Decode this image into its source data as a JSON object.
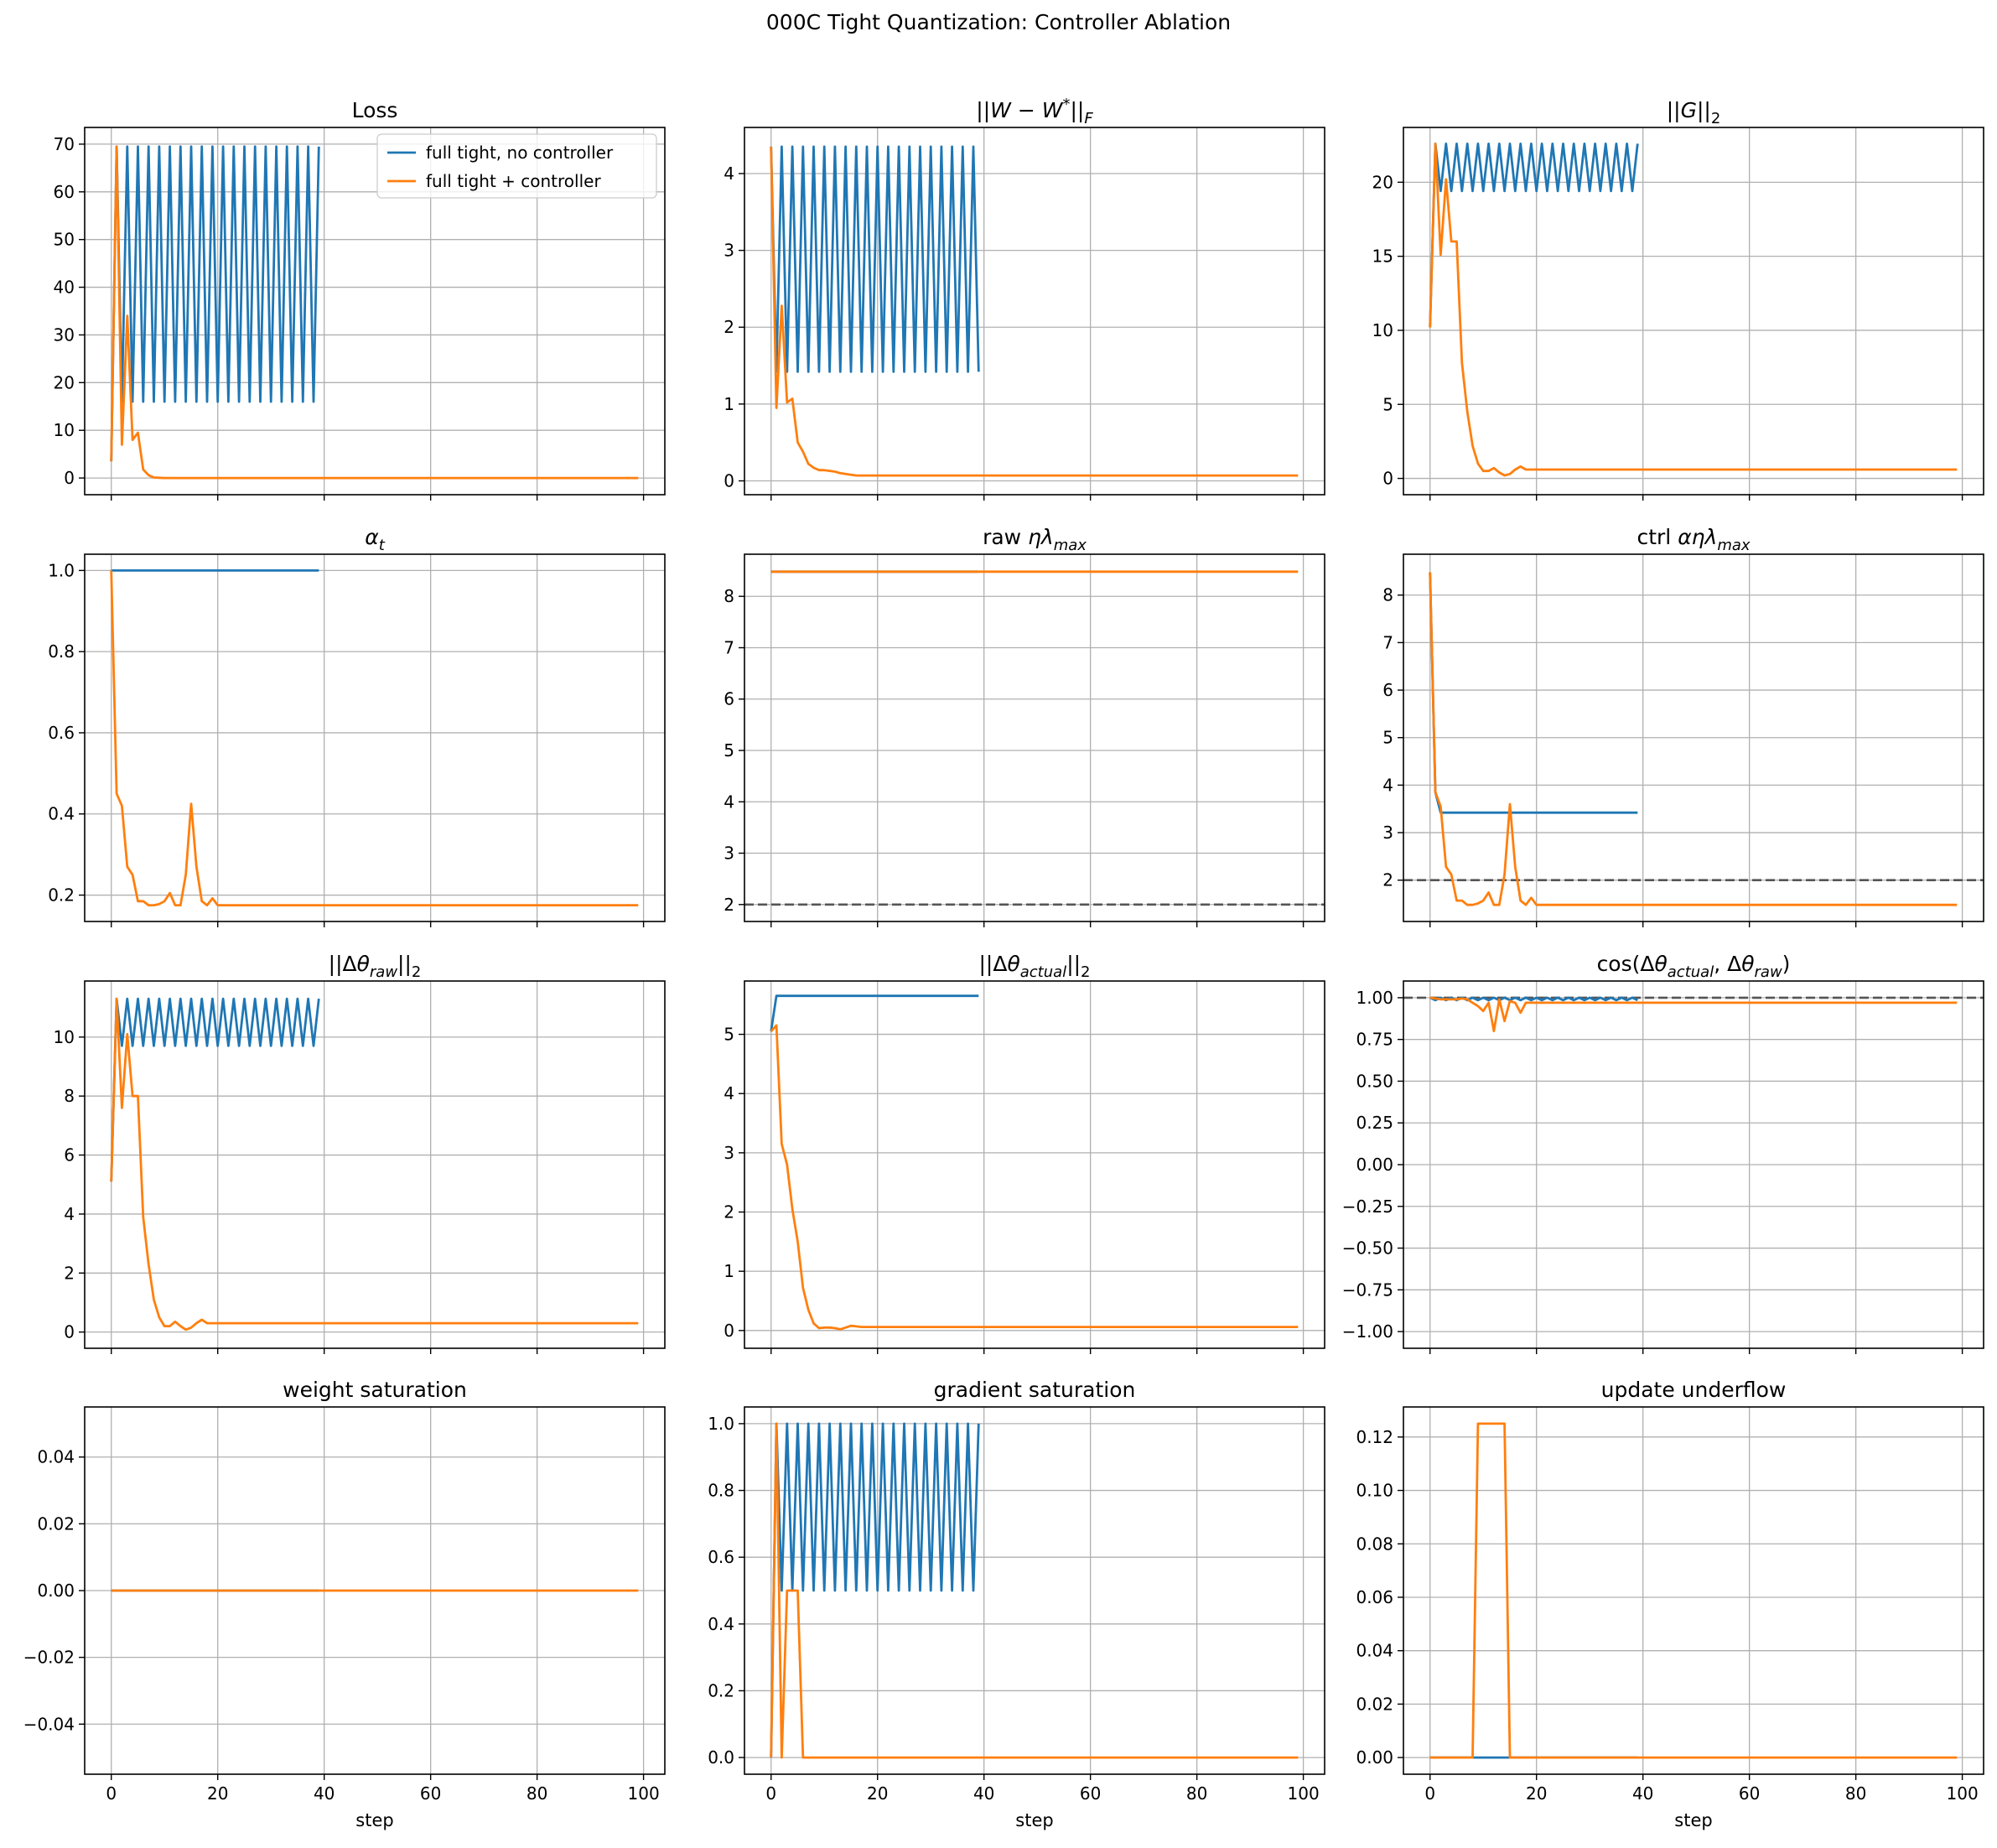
{
  "suptitle": "000C Tight Quantization: Controller Ablation",
  "colors": {
    "no_controller": "#1f77b4",
    "controller": "#ff7f0e",
    "grid": "#b0b0b0",
    "refline": "#555555"
  },
  "legend": {
    "location": "upper right",
    "panel": 0,
    "entries": [
      "full tight, no controller",
      "full tight + controller"
    ]
  },
  "chart_data": [
    {
      "type": "line",
      "title": "Loss",
      "xlabel": "",
      "xlim": [
        -5,
        104
      ],
      "ylim": [
        -3.5,
        73.5
      ],
      "xticks": [
        0,
        20,
        40,
        60,
        80,
        100
      ],
      "yticks": [
        0,
        10,
        20,
        30,
        40,
        50,
        60,
        70
      ],
      "ytick_labels": [
        "0",
        "10",
        "20",
        "30",
        "40",
        "50",
        "60",
        "70"
      ],
      "series": [
        {
          "name": "full tight, no controller",
          "x_start": 0,
          "values": [
            3.5,
            69.5,
            16,
            69.5,
            16,
            69.5,
            16,
            69.5,
            16,
            69.5,
            16,
            69.5,
            16,
            69.5,
            16,
            69.5,
            16,
            69.5,
            16,
            69.5,
            16,
            69.5,
            16,
            69.5,
            16,
            69.5,
            16,
            69.5,
            16,
            69.5,
            16,
            69.5,
            16,
            69.5,
            16,
            69.5,
            16,
            69.5,
            16,
            69.5
          ]
        },
        {
          "name": "full tight + controller",
          "x_start": 0,
          "values": [
            3.5,
            69.5,
            7,
            34,
            8,
            9.5,
            1.8,
            0.6,
            0.1,
            0.05
          ],
          "fill_to": 99,
          "fill_value": 0
        }
      ]
    },
    {
      "type": "line",
      "title": "||W − W*||_F",
      "xlabel": "",
      "xlim": [
        -5,
        104
      ],
      "ylim": [
        -0.18,
        4.6
      ],
      "xticks": [
        0,
        20,
        40,
        60,
        80,
        100
      ],
      "yticks": [
        0,
        1,
        2,
        3,
        4
      ],
      "ytick_labels": [
        "0",
        "1",
        "2",
        "3",
        "4"
      ],
      "series": [
        {
          "name": "full tight, no controller",
          "x_start": 0,
          "values": [
            4.35,
            1.42,
            4.35,
            1.42,
            4.35,
            1.42,
            4.35,
            1.42,
            4.35,
            1.42,
            4.35,
            1.42,
            4.35,
            1.42,
            4.35,
            1.42,
            4.35,
            1.42,
            4.35,
            1.42,
            4.35,
            1.42,
            4.35,
            1.42,
            4.35,
            1.42,
            4.35,
            1.42,
            4.35,
            1.42,
            4.35,
            1.42,
            4.35,
            1.42,
            4.35,
            1.42,
            4.35,
            1.42,
            4.35,
            1.42
          ]
        },
        {
          "name": "full tight + controller",
          "x_start": 0,
          "values": [
            4.35,
            0.95,
            2.28,
            1.02,
            1.07,
            0.5,
            0.38,
            0.22,
            0.17,
            0.14,
            0.14,
            0.13,
            0.12,
            0.1,
            0.09,
            0.08
          ],
          "fill_to": 99,
          "fill_value": 0.07
        }
      ]
    },
    {
      "type": "line",
      "title": "||G||_2",
      "xlabel": "",
      "xlim": [
        -5,
        104
      ],
      "ylim": [
        -1.1,
        23.7
      ],
      "xticks": [
        0,
        20,
        40,
        60,
        80,
        100
      ],
      "yticks": [
        0,
        5,
        10,
        15,
        20
      ],
      "ytick_labels": [
        "0",
        "5",
        "10",
        "15",
        "20"
      ],
      "series": [
        {
          "name": "full tight, no controller",
          "x_start": 0,
          "values": [
            10.2,
            22.6,
            19.4,
            22.6,
            19.4,
            22.6,
            19.4,
            22.6,
            19.4,
            22.6,
            19.4,
            22.6,
            19.4,
            22.6,
            19.4,
            22.6,
            19.4,
            22.6,
            19.4,
            22.6,
            19.4,
            22.6,
            19.4,
            22.6,
            19.4,
            22.6,
            19.4,
            22.6,
            19.4,
            22.6,
            19.4,
            22.6,
            19.4,
            22.6,
            19.4,
            22.6,
            19.4,
            22.6,
            19.4,
            22.6
          ]
        },
        {
          "name": "full tight + controller",
          "x_start": 0,
          "values": [
            10.2,
            22.6,
            15.1,
            20.2,
            16,
            16,
            7.8,
            4.5,
            2.2,
            1,
            0.5,
            0.5,
            0.7,
            0.4,
            0.2,
            0.3,
            0.6,
            0.8,
            0.6
          ],
          "fill_to": 99,
          "fill_value": 0.6
        }
      ]
    },
    {
      "type": "line",
      "title": "α_t",
      "xlabel": "",
      "xlim": [
        -5,
        104
      ],
      "ylim": [
        0.135,
        1.04
      ],
      "xticks": [
        0,
        20,
        40,
        60,
        80,
        100
      ],
      "yticks": [
        0.2,
        0.4,
        0.6,
        0.8,
        1.0
      ],
      "ytick_labels": [
        "0.2",
        "0.4",
        "0.6",
        "0.8",
        "1.0"
      ],
      "series": [
        {
          "name": "full tight, no controller",
          "x_start": 0,
          "values": [
            1,
            1
          ],
          "fill_to": 39,
          "fill_value": 1
        },
        {
          "name": "full tight + controller",
          "x_start": 0,
          "values": [
            1,
            0.45,
            0.42,
            0.27,
            0.25,
            0.185,
            0.185,
            0.175,
            0.175,
            0.178,
            0.185,
            0.205,
            0.175,
            0.175,
            0.25,
            0.425,
            0.27,
            0.185,
            0.175,
            0.192,
            0.175
          ],
          "fill_to": 99,
          "fill_value": 0.175
        }
      ]
    },
    {
      "type": "line",
      "title": "raw ηλ_max",
      "xlabel": "",
      "xlim": [
        -5,
        104
      ],
      "ylim": [
        1.67,
        8.82
      ],
      "xticks": [
        0,
        20,
        40,
        60,
        80,
        100
      ],
      "yticks": [
        2,
        3,
        4,
        5,
        6,
        7,
        8
      ],
      "ytick_labels": [
        "2",
        "3",
        "4",
        "5",
        "6",
        "7",
        "8"
      ],
      "hline": 2,
      "series": [
        {
          "name": "full tight, no controller",
          "x_start": 0,
          "values": [
            8.48,
            8.48
          ],
          "fill_to": 39,
          "fill_value": 8.48
        },
        {
          "name": "full tight + controller",
          "x_start": 0,
          "values": [
            8.48,
            8.48
          ],
          "fill_to": 99,
          "fill_value": 8.48
        }
      ]
    },
    {
      "type": "line",
      "title": "ctrl αηλ_max",
      "xlabel": "",
      "xlim": [
        -5,
        104
      ],
      "ylim": [
        1.13,
        8.86
      ],
      "xticks": [
        0,
        20,
        40,
        60,
        80,
        100
      ],
      "yticks": [
        2,
        3,
        4,
        5,
        6,
        7,
        8
      ],
      "ytick_labels": [
        "2",
        "3",
        "4",
        "5",
        "6",
        "7",
        "8"
      ],
      "hline": 2,
      "series": [
        {
          "name": "full tight, no controller",
          "x_start": 0,
          "values": [
            8.48,
            3.85,
            3.42
          ],
          "fill_to": 39,
          "fill_value": 3.42
        },
        {
          "name": "full tight + controller",
          "x_start": 0,
          "values": [
            8.48,
            3.85,
            3.55,
            2.28,
            2.12,
            1.57,
            1.57,
            1.48,
            1.48,
            1.51,
            1.57,
            1.74,
            1.48,
            1.48,
            2.12,
            3.6,
            2.28,
            1.57,
            1.48,
            1.63,
            1.48
          ],
          "fill_to": 99,
          "fill_value": 1.48
        }
      ]
    },
    {
      "type": "line",
      "title": "||Δθ_raw||_2",
      "xlabel": "",
      "xlim": [
        -5,
        104
      ],
      "ylim": [
        -0.55,
        11.9
      ],
      "xticks": [
        0,
        20,
        40,
        60,
        80,
        100
      ],
      "yticks": [
        0,
        2,
        4,
        6,
        8,
        10
      ],
      "ytick_labels": [
        "0",
        "2",
        "4",
        "6",
        "8",
        "10"
      ],
      "series": [
        {
          "name": "full tight, no controller",
          "x_start": 0,
          "values": [
            5.1,
            11.3,
            9.7,
            11.3,
            9.7,
            11.3,
            9.7,
            11.3,
            9.7,
            11.3,
            9.7,
            11.3,
            9.7,
            11.3,
            9.7,
            11.3,
            9.7,
            11.3,
            9.7,
            11.3,
            9.7,
            11.3,
            9.7,
            11.3,
            9.7,
            11.3,
            9.7,
            11.3,
            9.7,
            11.3,
            9.7,
            11.3,
            9.7,
            11.3,
            9.7,
            11.3,
            9.7,
            11.3,
            9.7,
            11.3
          ]
        },
        {
          "name": "full tight + controller",
          "x_start": 0,
          "values": [
            5.1,
            11.3,
            7.6,
            10.1,
            8,
            8,
            3.9,
            2.3,
            1.1,
            0.5,
            0.2,
            0.2,
            0.35,
            0.2,
            0.08,
            0.15,
            0.3,
            0.42,
            0.3
          ],
          "fill_to": 99,
          "fill_value": 0.3
        }
      ]
    },
    {
      "type": "line",
      "title": "||Δθ_actual||_2",
      "xlabel": "",
      "xlim": [
        -5,
        104
      ],
      "ylim": [
        -0.3,
        5.9
      ],
      "xticks": [
        0,
        20,
        40,
        60,
        80,
        100
      ],
      "yticks": [
        0,
        1,
        2,
        3,
        4,
        5
      ],
      "ytick_labels": [
        "0",
        "1",
        "2",
        "3",
        "4",
        "5"
      ],
      "series": [
        {
          "name": "full tight, no controller",
          "x_start": 0,
          "values": [
            5.05,
            5.65
          ],
          "fill_to": 39,
          "fill_value": 5.65
        },
        {
          "name": "full tight + controller",
          "x_start": 0,
          "values": [
            5.05,
            5.15,
            3.15,
            2.8,
            2.05,
            1.5,
            0.72,
            0.35,
            0.12,
            0.04,
            0.05,
            0.05,
            0.04,
            0.02,
            0.05,
            0.08,
            0.07,
            0.06
          ],
          "fill_to": 99,
          "fill_value": 0.06
        }
      ]
    },
    {
      "type": "line",
      "title": "cos(Δθ_actual, Δθ_raw)",
      "xlabel": "",
      "xlim": [
        -5,
        104
      ],
      "ylim": [
        -1.1,
        1.1
      ],
      "xticks": [
        0,
        20,
        40,
        60,
        80,
        100
      ],
      "yticks": [
        -1,
        -0.75,
        -0.5,
        -0.25,
        0,
        0.25,
        0.5,
        0.75,
        1
      ],
      "ytick_labels": [
        "−1.00",
        "−0.75",
        "−0.50",
        "−0.25",
        "0.00",
        "0.25",
        "0.50",
        "0.75",
        "1.00"
      ],
      "hline": 1,
      "series": [
        {
          "name": "full tight, no controller",
          "x_start": 0,
          "values": [
            1,
            0.985,
            1,
            0.985,
            1,
            0.985,
            1,
            0.985,
            1,
            0.985,
            1,
            0.985,
            1,
            0.985,
            1,
            0.985,
            1,
            0.985,
            1,
            0.985,
            1,
            0.985,
            1,
            0.985,
            1,
            0.985,
            1,
            0.985,
            1,
            0.985,
            1,
            0.985,
            1,
            0.985,
            1,
            0.985,
            1,
            0.985,
            1,
            0.985
          ]
        },
        {
          "name": "full tight + controller",
          "x_start": 0,
          "values": [
            1,
            0.995,
            0.99,
            0.99,
            0.99,
            0.99,
            0.995,
            0.99,
            0.97,
            0.95,
            0.92,
            0.97,
            0.8,
            0.99,
            0.86,
            0.98,
            0.97,
            0.91,
            0.97,
            0.97
          ],
          "fill_to": 99,
          "fill_value": 0.97
        }
      ]
    },
    {
      "type": "line",
      "title": "weight saturation",
      "xlabel": "step",
      "xlim": [
        -5,
        104
      ],
      "ylim": [
        -0.055,
        0.055
      ],
      "xticks": [
        0,
        20,
        40,
        60,
        80,
        100
      ],
      "yticks": [
        -0.04,
        -0.02,
        0,
        0.02,
        0.04
      ],
      "ytick_labels": [
        "−0.04",
        "−0.02",
        "0.00",
        "0.02",
        "0.04"
      ],
      "xtick_labels": [
        "0",
        "20",
        "40",
        "60",
        "80",
        "100"
      ],
      "series": [
        {
          "name": "full tight, no controller",
          "x_start": 0,
          "values": [
            0,
            0
          ],
          "fill_to": 39,
          "fill_value": 0
        },
        {
          "name": "full tight + controller",
          "x_start": 0,
          "values": [
            0,
            0
          ],
          "fill_to": 99,
          "fill_value": 0
        }
      ]
    },
    {
      "type": "line",
      "title": "gradient saturation",
      "xlabel": "step",
      "xlim": [
        -5,
        104
      ],
      "ylim": [
        -0.05,
        1.05
      ],
      "xticks": [
        0,
        20,
        40,
        60,
        80,
        100
      ],
      "yticks": [
        0,
        0.2,
        0.4,
        0.6,
        0.8,
        1.0
      ],
      "ytick_labels": [
        "0.0",
        "0.2",
        "0.4",
        "0.6",
        "0.8",
        "1.0"
      ],
      "xtick_labels": [
        "0",
        "20",
        "40",
        "60",
        "80",
        "100"
      ],
      "series": [
        {
          "name": "full tight, no controller",
          "x_start": 0,
          "values": [
            0,
            1,
            0.5,
            1,
            0.5,
            1,
            0.5,
            1,
            0.5,
            1,
            0.5,
            1,
            0.5,
            1,
            0.5,
            1,
            0.5,
            1,
            0.5,
            1,
            0.5,
            1,
            0.5,
            1,
            0.5,
            1,
            0.5,
            1,
            0.5,
            1,
            0.5,
            1,
            0.5,
            1,
            0.5,
            1,
            0.5,
            1,
            0.5,
            1
          ]
        },
        {
          "name": "full tight + controller",
          "x_start": 0,
          "values": [
            0,
            1,
            0,
            0.5,
            0.5,
            0.5,
            0,
            0
          ],
          "fill_to": 99,
          "fill_value": 0
        }
      ]
    },
    {
      "type": "line",
      "title": "update underflow",
      "xlabel": "step",
      "xlim": [
        -5,
        104
      ],
      "ylim": [
        -0.00625,
        0.13125
      ],
      "xticks": [
        0,
        20,
        40,
        60,
        80,
        100
      ],
      "yticks": [
        0,
        0.02,
        0.04,
        0.06,
        0.08,
        0.1,
        0.12
      ],
      "ytick_labels": [
        "0.00",
        "0.02",
        "0.04",
        "0.06",
        "0.08",
        "0.10",
        "0.12"
      ],
      "xtick_labels": [
        "0",
        "20",
        "40",
        "60",
        "80",
        "100"
      ],
      "series": [
        {
          "name": "full tight, no controller",
          "x_start": 0,
          "values": [
            0,
            0
          ],
          "fill_to": 39,
          "fill_value": 0
        },
        {
          "name": "full tight + controller",
          "x_start": 0,
          "values": [
            0,
            0,
            0,
            0,
            0,
            0,
            0,
            0,
            0,
            0.125,
            0.125,
            0.125,
            0.125,
            0.125,
            0.125,
            0
          ],
          "fill_to": 99,
          "fill_value": 0
        }
      ]
    }
  ]
}
